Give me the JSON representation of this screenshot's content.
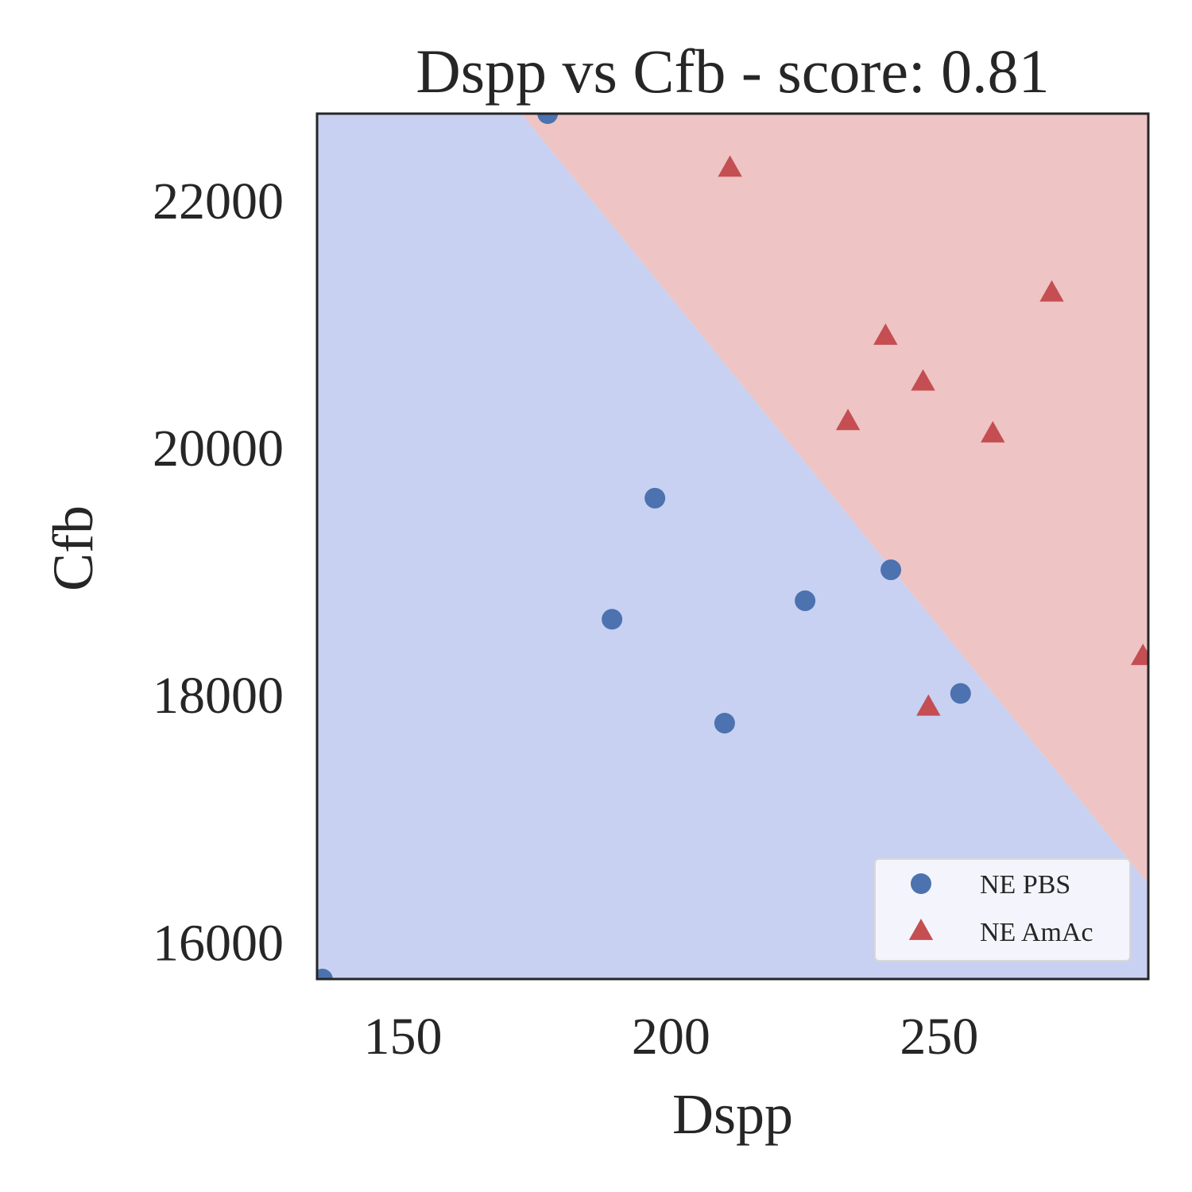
{
  "chart_data": {
    "type": "scatter",
    "title": "Dspp vs Cfb - score: 0.81",
    "xlabel": "Dspp",
    "ylabel": "Cfb",
    "xlim": [
      134,
      289
    ],
    "ylim": [
      15700,
      22700
    ],
    "x_ticks": [
      150,
      200,
      250
    ],
    "y_ticks": [
      16000,
      18000,
      20000,
      22000
    ],
    "x_tick_labels": [
      "150",
      "200",
      "250"
    ],
    "y_tick_labels": [
      "16000",
      "18000",
      "20000",
      "22000"
    ],
    "grid": false,
    "legend_position": "bottom-right",
    "decision_boundary": {
      "points": [
        [
          172.1,
          22700
        ],
        [
          289,
          16470
        ]
      ],
      "regions": [
        {
          "class": "NE PBS",
          "side": "lower-left",
          "color": "#c8d1f1"
        },
        {
          "class": "NE AmAc",
          "side": "upper-right",
          "color": "#eec4c4"
        }
      ]
    },
    "series": [
      {
        "name": "NE PBS",
        "marker": "circle",
        "color": "#4c72b0",
        "points": [
          {
            "x": 135,
            "y": 15700
          },
          {
            "x": 177,
            "y": 22700
          },
          {
            "x": 197,
            "y": 19590
          },
          {
            "x": 189,
            "y": 18610
          },
          {
            "x": 210,
            "y": 17770
          },
          {
            "x": 225,
            "y": 18760
          },
          {
            "x": 241,
            "y": 19010
          },
          {
            "x": 254,
            "y": 18010
          }
        ]
      },
      {
        "name": "NE AmAc",
        "marker": "triangle",
        "color": "#c44e52",
        "points": [
          {
            "x": 211,
            "y": 22260
          },
          {
            "x": 240,
            "y": 20900
          },
          {
            "x": 247,
            "y": 20530
          },
          {
            "x": 233,
            "y": 20210
          },
          {
            "x": 260,
            "y": 20110
          },
          {
            "x": 271,
            "y": 21250
          },
          {
            "x": 248,
            "y": 17900
          },
          {
            "x": 288,
            "y": 18310
          }
        ]
      }
    ]
  }
}
